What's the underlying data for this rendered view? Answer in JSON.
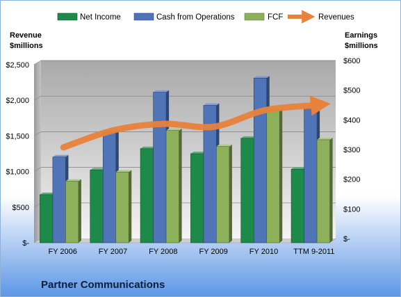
{
  "chart_data": {
    "type": "bar",
    "title": "Partner Communications",
    "categories": [
      "FY 2006",
      "FY 2007",
      "FY 2008",
      "FY 2009",
      "FY 2010",
      "TTM 9-2011"
    ],
    "left_axis": {
      "label_line1": "Revenue",
      "label_line2": "$millions",
      "ylim": [
        0,
        2500
      ],
      "ticks": [
        {
          "value": 0,
          "label": "$-"
        },
        {
          "value": 500,
          "label": "$500"
        },
        {
          "value": 1000,
          "label": "$1,000"
        },
        {
          "value": 1500,
          "label": "$1,500"
        },
        {
          "value": 2000,
          "label": "$2,000"
        },
        {
          "value": 2500,
          "label": "$2,500"
        }
      ]
    },
    "right_axis": {
      "label_line1": "Earnings",
      "label_line2": "$millions",
      "ylim": [
        0,
        600
      ],
      "ticks": [
        {
          "value": 0,
          "label": "$-"
        },
        {
          "value": 100,
          "label": "$100"
        },
        {
          "value": 200,
          "label": "$200"
        },
        {
          "value": 300,
          "label": "$300"
        },
        {
          "value": 400,
          "label": "$400"
        },
        {
          "value": 500,
          "label": "$500"
        },
        {
          "value": 600,
          "label": "$600"
        }
      ]
    },
    "series": [
      {
        "name": "Net Income",
        "type": "bar",
        "axis": "right",
        "color": "#1e8a4a",
        "values": [
          162,
          245,
          317,
          300,
          352,
          248
        ]
      },
      {
        "name": "Cash from Operations",
        "type": "bar",
        "axis": "right",
        "color": "#4f74b8",
        "values": [
          289,
          372,
          507,
          463,
          555,
          453
        ]
      },
      {
        "name": "FCF",
        "type": "bar",
        "axis": "right",
        "color": "#8cb15a",
        "values": [
          207,
          238,
          378,
          324,
          447,
          347
        ]
      },
      {
        "name": "Revenues",
        "type": "line",
        "axis": "left",
        "color": "#e8823a",
        "values": [
          1310,
          1550,
          1640,
          1600,
          1830,
          1900
        ]
      }
    ],
    "grid": true,
    "legend_position": "top"
  }
}
